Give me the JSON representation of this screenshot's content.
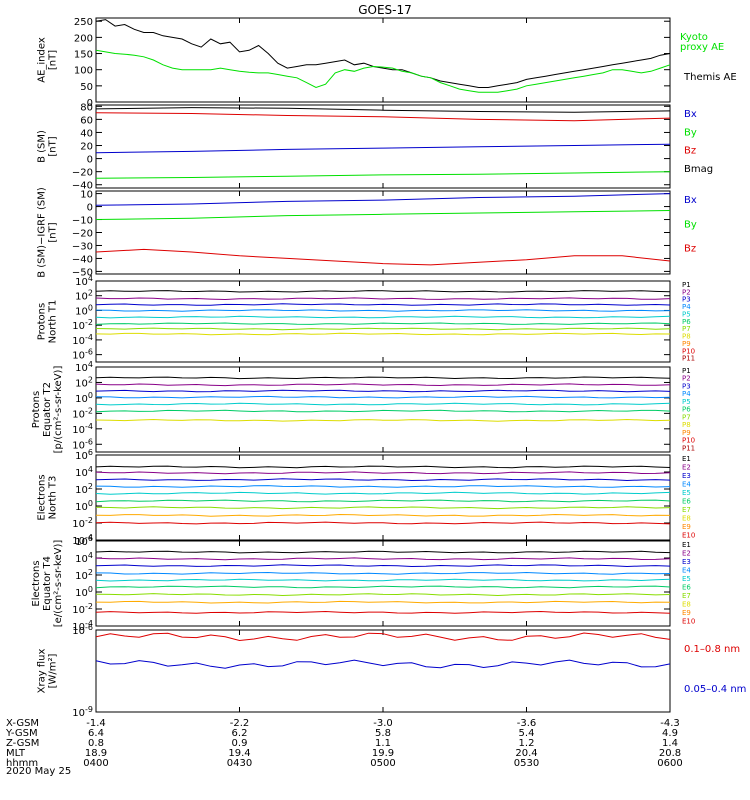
{
  "title": "GOES-17",
  "date_label": "2020 May 25",
  "chart_data": {
    "type": "line",
    "panels": [
      {
        "id": "ae",
        "ylabel": [
          "AE_index",
          "[nT]"
        ],
        "scale": "linear",
        "ylim": [
          0,
          260
        ],
        "yticks": [
          "0",
          "50",
          "100",
          "150",
          "200",
          "250"
        ],
        "series": [
          {
            "name": "Themis AE",
            "color": "#000000",
            "x": [
              0,
              2,
              4,
              6,
              8,
              10,
              12,
              14,
              16,
              18,
              20,
              22,
              24,
              26,
              28,
              30,
              32,
              34,
              36,
              38,
              40,
              42,
              44,
              46,
              48,
              50,
              52,
              54,
              56,
              58,
              60,
              62,
              64,
              66,
              68,
              70,
              72,
              74,
              76,
              78,
              80,
              82,
              84,
              86,
              88,
              90,
              92,
              94,
              96,
              98,
              100,
              102,
              104,
              106,
              108,
              110,
              112,
              114,
              116,
              118,
              120
            ],
            "y": [
              250,
              255,
              235,
              240,
              225,
              215,
              215,
              205,
              200,
              195,
              180,
              170,
              195,
              180,
              185,
              155,
              160,
              175,
              150,
              120,
              105,
              110,
              115,
              115,
              120,
              125,
              130,
              115,
              120,
              110,
              105,
              100,
              100,
              90,
              80,
              75,
              65,
              60,
              55,
              50,
              45,
              45,
              50,
              55,
              60,
              70,
              75,
              80,
              85,
              90,
              95,
              100,
              105,
              110,
              115,
              120,
              125,
              130,
              135,
              145,
              150
            ]
          },
          {
            "name": "Kyoto",
            "name_line2": "proxy AE",
            "color": "#00e000",
            "x": [
              0,
              2,
              4,
              6,
              8,
              10,
              12,
              14,
              16,
              18,
              20,
              22,
              24,
              26,
              28,
              30,
              32,
              34,
              36,
              38,
              40,
              42,
              44,
              46,
              48,
              50,
              52,
              54,
              56,
              58,
              60,
              62,
              64,
              66,
              68,
              70,
              72,
              74,
              76,
              78,
              80,
              82,
              84,
              86,
              88,
              90,
              92,
              94,
              96,
              98,
              100,
              102,
              104,
              106,
              108,
              110,
              112,
              114,
              116,
              118,
              120
            ],
            "y": [
              160,
              155,
              150,
              148,
              145,
              140,
              130,
              115,
              105,
              100,
              100,
              100,
              100,
              105,
              100,
              95,
              92,
              90,
              90,
              85,
              80,
              75,
              60,
              45,
              55,
              90,
              100,
              95,
              105,
              110,
              108,
              105,
              95,
              90,
              80,
              75,
              60,
              50,
              40,
              35,
              30,
              30,
              30,
              35,
              40,
              50,
              55,
              60,
              65,
              70,
              75,
              80,
              85,
              90,
              100,
              100,
              95,
              90,
              95,
              105,
              115
            ]
          }
        ],
        "legend": "right"
      },
      {
        "id": "bsm",
        "ylabel": [
          "B (SM)",
          "[nT]"
        ],
        "scale": "linear",
        "ylim": [
          -45,
          82
        ],
        "yticks": [
          "80",
          "60",
          "40",
          "20",
          "0",
          "−20",
          "−40"
        ],
        "yticks_values": [
          80,
          60,
          40,
          20,
          0,
          -20,
          -40
        ],
        "series": [
          {
            "name": "Bmag",
            "color": "#000000",
            "x": [
              0,
              20,
              40,
              60,
              80,
              100,
              120
            ],
            "y": [
              76,
              78,
              77,
              74,
              72,
              71,
              73
            ]
          },
          {
            "name": "Bz",
            "color": "#dd0000",
            "x": [
              0,
              20,
              40,
              60,
              80,
              100,
              120
            ],
            "y": [
              70,
              69,
              66,
              64,
              60,
              58,
              62
            ]
          },
          {
            "name": "Bx",
            "color": "#0000cc",
            "x": [
              0,
              20,
              40,
              60,
              80,
              100,
              120
            ],
            "y": [
              9,
              11,
              14,
              16,
              18,
              20,
              22
            ]
          },
          {
            "name": "By",
            "color": "#00e000",
            "x": [
              0,
              20,
              40,
              60,
              80,
              100,
              120
            ],
            "y": [
              -30,
              -29,
              -27,
              -25,
              -24,
              -22,
              -20
            ]
          }
        ],
        "legend_order": [
          "Bx",
          "By",
          "Bz",
          "Bmag"
        ],
        "legend_colors": [
          "#0000cc",
          "#00e000",
          "#dd0000",
          "#000000"
        ]
      },
      {
        "id": "bigrf",
        "ylabel": [
          "B (SM)−IGRF (SM)",
          "[nT]"
        ],
        "scale": "linear",
        "ylim": [
          -52,
          12
        ],
        "yticks": [
          "10",
          "0",
          "−10",
          "−20",
          "−30",
          "−40",
          "−50"
        ],
        "yticks_values": [
          10,
          0,
          -10,
          -20,
          -30,
          -40,
          -50
        ],
        "series": [
          {
            "name": "Bx",
            "color": "#0000cc",
            "x": [
              0,
              20,
              40,
              60,
              80,
              100,
              120
            ],
            "y": [
              1,
              2,
              4,
              5,
              7,
              8,
              10
            ]
          },
          {
            "name": "By",
            "color": "#00e000",
            "x": [
              0,
              20,
              40,
              60,
              80,
              100,
              120
            ],
            "y": [
              -10,
              -9,
              -7,
              -6,
              -5,
              -4,
              -3
            ]
          },
          {
            "name": "Bz",
            "color": "#dd0000",
            "x": [
              0,
              10,
              20,
              30,
              40,
              50,
              60,
              70,
              80,
              90,
              100,
              110,
              120
            ],
            "y": [
              -35,
              -33,
              -35,
              -38,
              -40,
              -42,
              -44,
              -45,
              -43,
              -41,
              -38,
              -38,
              -42
            ]
          }
        ],
        "legend_order": [
          "Bx",
          "By",
          "Bz"
        ],
        "legend_colors": [
          "#0000cc",
          "#00e000",
          "#dd0000"
        ]
      },
      {
        "id": "p_north",
        "ylabel": [
          "Protons",
          "North T1"
        ],
        "scale": "log",
        "ylim_exp": [
          -7,
          4
        ],
        "yticks": [
          "10^4",
          "10^2",
          "10^0",
          "10^-2",
          "10^-4",
          "10^-6"
        ],
        "yticks_values": [
          4,
          2,
          0,
          -2,
          -4,
          -6
        ],
        "series": [
          {
            "name": "P1",
            "color": "#000000",
            "y_log": 2.6
          },
          {
            "name": "P2",
            "color": "#880088",
            "y_log": 1.6
          },
          {
            "name": "P3",
            "color": "#0000cc",
            "y_log": 0.8
          },
          {
            "name": "P4",
            "color": "#0088ff",
            "y_log": 0.0
          },
          {
            "name": "P5",
            "color": "#00cccc",
            "y_log": -0.9
          },
          {
            "name": "P6",
            "color": "#00cc66",
            "y_log": -1.8
          },
          {
            "name": "P7",
            "color": "#88dd00",
            "y_log": -2.5
          },
          {
            "name": "P8",
            "color": "#dddd00",
            "y_log": -3.2
          }
        ],
        "legend": [
          "P1",
          "P2",
          "P3",
          "P4",
          "P5",
          "P6",
          "P7",
          "P8",
          "P9",
          "P10",
          "P11"
        ],
        "legend_colors": [
          "#000000",
          "#880088",
          "#0000cc",
          "#0088ff",
          "#00cccc",
          "#00cc66",
          "#88dd00",
          "#dddd00",
          "#ff8800",
          "#dd0000",
          "#aa0000"
        ]
      },
      {
        "id": "p_equator",
        "ylabel": [
          "Protons",
          "Equator T2",
          "[p/(cm²-s-sr-keV)]"
        ],
        "scale": "log",
        "ylim_exp": [
          -7,
          4
        ],
        "yticks": [
          "10^4",
          "10^2",
          "10^0",
          "10^-2",
          "10^-4",
          "10^-6"
        ],
        "yticks_values": [
          4,
          2,
          0,
          -2,
          -4,
          -6
        ],
        "series": [
          {
            "name": "P1",
            "color": "#000000",
            "y_log": 2.6
          },
          {
            "name": "P2",
            "color": "#880088",
            "y_log": 1.7
          },
          {
            "name": "P3",
            "color": "#0000cc",
            "y_log": 0.9
          },
          {
            "name": "P4",
            "color": "#0088ff",
            "y_log": 0.1
          },
          {
            "name": "P5",
            "color": "#00cccc",
            "y_log": -0.8
          },
          {
            "name": "P6",
            "color": "#00cc66",
            "y_log": -1.7
          },
          {
            "name": "P7",
            "color": "#dddd00",
            "y_log": -2.9
          }
        ],
        "legend": [
          "P1",
          "P2",
          "P3",
          "P4",
          "P5",
          "P6",
          "P7",
          "P8",
          "P9",
          "P10",
          "P11"
        ],
        "legend_colors": [
          "#000000",
          "#880088",
          "#0000cc",
          "#0088ff",
          "#00cccc",
          "#00cc66",
          "#88dd00",
          "#dddd00",
          "#ff8800",
          "#dd0000",
          "#aa0000"
        ]
      },
      {
        "id": "e_north",
        "ylabel": [
          "Electrons",
          "North T3"
        ],
        "scale": "log",
        "ylim_exp": [
          -4,
          6
        ],
        "yticks": [
          "10^6",
          "10^4",
          "10^2",
          "10^0",
          "10^-2",
          "10^-4"
        ],
        "yticks_values": [
          6,
          4,
          2,
          0,
          -2,
          -4
        ],
        "series": [
          {
            "name": "E1",
            "color": "#000000",
            "y_log": 4.6
          },
          {
            "name": "E2",
            "color": "#880088",
            "y_log": 3.9
          },
          {
            "name": "E3",
            "color": "#0000cc",
            "y_log": 3.1
          },
          {
            "name": "E4",
            "color": "#0088ff",
            "y_log": 2.3
          },
          {
            "name": "E5",
            "color": "#00cccc",
            "y_log": 1.5
          },
          {
            "name": "E6",
            "color": "#00cc66",
            "y_log": 0.6
          },
          {
            "name": "E7",
            "color": "#88dd00",
            "y_log": -0.2
          },
          {
            "name": "E8",
            "color": "#ffaa00",
            "y_log": -1.1
          },
          {
            "name": "E9",
            "color": "#dd0000",
            "y_log": -2.0
          }
        ],
        "legend": [
          "E1",
          "E2",
          "E3",
          "E4",
          "E5",
          "E6",
          "E7",
          "E8",
          "E9",
          "E10"
        ],
        "legend_colors": [
          "#000000",
          "#880088",
          "#0000cc",
          "#0088ff",
          "#00cccc",
          "#00cc66",
          "#88dd00",
          "#dddd00",
          "#ff8800",
          "#dd0000"
        ]
      },
      {
        "id": "e_equator",
        "ylabel": [
          "Electrons",
          "Equator T4",
          "[e/(cm²-s-sr-keV)]"
        ],
        "scale": "log",
        "ylim_exp": [
          -4,
          6
        ],
        "yticks": [
          "10^6",
          "10^4",
          "10^2",
          "10^0",
          "10^-2",
          "10^-4"
        ],
        "yticks_values": [
          6,
          4,
          2,
          0,
          -2,
          -4
        ],
        "series": [
          {
            "name": "E1",
            "color": "#000000",
            "y_log": 4.7
          },
          {
            "name": "E2",
            "color": "#880088",
            "y_log": 3.9
          },
          {
            "name": "E3",
            "color": "#0000cc",
            "y_log": 3.1
          },
          {
            "name": "E4",
            "color": "#0088ff",
            "y_log": 2.2
          },
          {
            "name": "E5",
            "color": "#00cccc",
            "y_log": 1.4
          },
          {
            "name": "E6",
            "color": "#00cc66",
            "y_log": 0.6
          },
          {
            "name": "E7",
            "color": "#88dd00",
            "y_log": -0.3
          },
          {
            "name": "E8",
            "color": "#ffaa00",
            "y_log": -1.2
          },
          {
            "name": "E9",
            "color": "#dd0000",
            "y_log": -2.4
          }
        ],
        "legend": [
          "E1",
          "E2",
          "E3",
          "E4",
          "E5",
          "E6",
          "E7",
          "E8",
          "E9",
          "E10"
        ],
        "legend_colors": [
          "#000000",
          "#880088",
          "#0000cc",
          "#0088ff",
          "#00cccc",
          "#00cc66",
          "#88dd00",
          "#dddd00",
          "#ff8800",
          "#dd0000"
        ]
      },
      {
        "id": "xray",
        "ylabel": [
          "Xray flux",
          "[W/m²]"
        ],
        "scale": "log",
        "ylim_exp": [
          -9,
          -6
        ],
        "yticks": [
          "10^-6",
          "10^-9"
        ],
        "yticks_values": [
          -6,
          -9
        ],
        "series": [
          {
            "name": "0.1–0.8 nm",
            "color": "#dd0000",
            "y_log": -6.25
          },
          {
            "name": "0.05–0.4 nm",
            "color": "#0000cc",
            "y_log": -7.25
          }
        ]
      }
    ],
    "xaxis": {
      "rows": [
        {
          "label": "X-GSM",
          "values": [
            "-1.4",
            "-2.2",
            "-3.0",
            "-3.6",
            "-4.3"
          ]
        },
        {
          "label": "Y-GSM",
          "values": [
            "6.4",
            "6.2",
            "5.8",
            "5.4",
            "4.9"
          ]
        },
        {
          "label": "Z-GSM",
          "values": [
            "0.8",
            "0.9",
            "1.1",
            "1.2",
            "1.4"
          ]
        },
        {
          "label": "MLT",
          "values": [
            "18.9",
            "19.4",
            "19.9",
            "20.4",
            "20.8"
          ]
        },
        {
          "label": "hhmm",
          "values": [
            "0400",
            "0430",
            "0500",
            "0530",
            "0600"
          ]
        }
      ],
      "tick_minutes": [
        0,
        30,
        60,
        90,
        120
      ],
      "xlim": [
        0,
        120
      ]
    }
  }
}
